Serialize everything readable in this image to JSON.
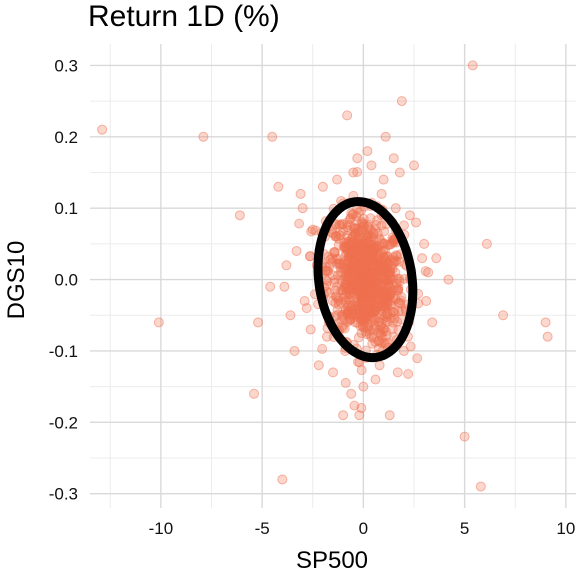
{
  "chart_data": {
    "type": "scatter",
    "title": "Return 1D (%)",
    "xlabel": "SP500",
    "ylabel": "DGS10",
    "xlim": [
      -13.5,
      10.5
    ],
    "ylim": [
      -0.32,
      0.33
    ],
    "x_ticks": [
      -10,
      -5,
      0,
      5,
      10
    ],
    "y_ticks": [
      -0.3,
      -0.2,
      -0.1,
      0.0,
      0.1,
      0.2,
      0.3
    ],
    "x_tick_labels": [
      "-10",
      "-5",
      "0",
      "5",
      "10"
    ],
    "y_tick_labels": [
      "-0.3",
      "-0.2",
      "-0.1",
      "0.0",
      "0.1",
      "0.2",
      "0.3"
    ],
    "grid": true,
    "point_color": "#f07050",
    "ellipse_color": "#000000",
    "ellipse": {
      "center": [
        0.1,
        0.0
      ],
      "semi_axis_x": 2.3,
      "semi_axis_y": 0.11,
      "rotation_deg": -8
    },
    "series": [
      {
        "values": [
          [
            -12.9,
            0.21
          ],
          [
            -7.9,
            0.2
          ],
          [
            -6.1,
            0.09
          ],
          [
            -10.1,
            -0.06
          ],
          [
            -5.2,
            -0.06
          ],
          [
            -5.4,
            -0.16
          ],
          [
            -4.0,
            -0.28
          ],
          [
            -4.5,
            0.2
          ],
          [
            -4.2,
            0.13
          ],
          [
            -3.9,
            -0.01
          ],
          [
            -3.6,
            -0.05
          ],
          [
            -3.4,
            -0.1
          ],
          [
            -4.6,
            -0.01
          ],
          [
            -3.0,
            0.1
          ],
          [
            -3.3,
            0.04
          ],
          [
            -2.8,
            -0.04
          ],
          [
            -2.5,
            0.07
          ],
          [
            -2.2,
            -0.12
          ],
          [
            -2.0,
            0.13
          ],
          [
            -1.8,
            -0.08
          ],
          [
            -1.0,
            -0.19
          ],
          [
            -0.8,
            0.23
          ],
          [
            -0.6,
            -0.16
          ],
          [
            0.2,
            0.18
          ],
          [
            -0.3,
            0.17
          ],
          [
            0.6,
            -0.14
          ],
          [
            -0.1,
            -0.18
          ],
          [
            1.5,
            0.17
          ],
          [
            1.8,
            0.15
          ],
          [
            1.9,
            0.25
          ],
          [
            2.2,
            -0.08
          ],
          [
            2.5,
            0.16
          ],
          [
            2.6,
            0.08
          ],
          [
            3.0,
            0.05
          ],
          [
            3.2,
            0.01
          ],
          [
            3.4,
            -0.06
          ],
          [
            4.2,
            0.0
          ],
          [
            5.0,
            -0.22
          ],
          [
            5.4,
            0.3
          ],
          [
            5.8,
            -0.29
          ],
          [
            6.1,
            0.05
          ],
          [
            6.9,
            -0.05
          ],
          [
            9.0,
            -0.06
          ],
          [
            9.1,
            -0.08
          ],
          [
            -1.3,
            0.14
          ],
          [
            1.1,
            0.2
          ],
          [
            1.3,
            -0.19
          ],
          [
            -0.2,
            -0.19
          ],
          [
            2.0,
            -0.1
          ],
          [
            -2.9,
            -0.03
          ],
          [
            2.7,
            -0.02
          ],
          [
            1.6,
            0.1
          ],
          [
            -1.5,
            -0.13
          ],
          [
            0.9,
            0.12
          ],
          [
            -1.1,
            0.11
          ],
          [
            2.3,
            0.09
          ],
          [
            -3.1,
            0.12
          ],
          [
            0.0,
            -0.15
          ],
          [
            1.7,
            -0.13
          ],
          [
            -2.3,
            0.02
          ],
          [
            2.9,
            0.03
          ],
          [
            -0.9,
            -0.1
          ],
          [
            0.8,
            -0.12
          ],
          [
            -1.9,
            0.06
          ],
          [
            3.1,
            -0.03
          ],
          [
            -0.5,
            0.15
          ],
          [
            0.4,
            0.16
          ],
          [
            -1.7,
            -0.06
          ],
          [
            1.0,
            0.14
          ],
          [
            -3.8,
            0.02
          ],
          [
            -2.6,
            -0.07
          ],
          [
            3.6,
            0.03
          ]
        ]
      }
    ]
  }
}
